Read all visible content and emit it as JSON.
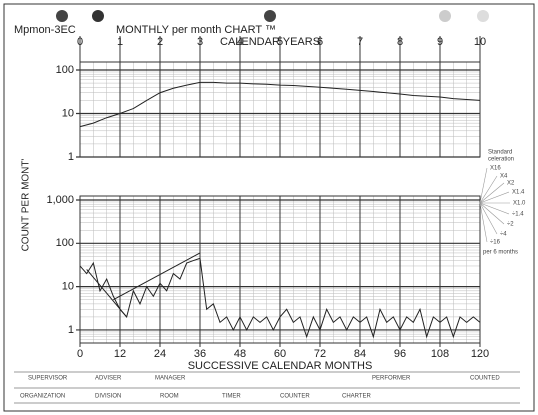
{
  "chart_data": [
    {
      "type": "line",
      "title": "MONTHLY per month CHART ™",
      "x2label": "CALENDAR YEARS",
      "x2lim": [
        0,
        10
      ],
      "x2ticks": [
        0,
        1,
        2,
        3,
        4,
        5,
        6,
        7,
        8,
        9,
        10
      ],
      "xlim": [
        0,
        120
      ],
      "ylim": [
        1,
        100
      ],
      "yticks": [
        1,
        10,
        100
      ],
      "log_y": true,
      "grid": true,
      "series": [
        {
          "color": "#222",
          "x": [
            0,
            4,
            8,
            12,
            16,
            20,
            24,
            28,
            32,
            36,
            40,
            44,
            48,
            52,
            56,
            60,
            64,
            68,
            72,
            76,
            80,
            84,
            88,
            92,
            96,
            100,
            104,
            108,
            112,
            116,
            120
          ],
          "values": [
            5,
            6,
            8,
            10,
            13,
            20,
            30,
            38,
            45,
            52,
            52,
            50,
            50,
            48,
            47,
            45,
            44,
            42,
            40,
            38,
            36,
            34,
            32,
            30,
            28,
            26,
            25,
            24,
            22,
            21,
            20
          ]
        }
      ]
    },
    {
      "type": "line",
      "xlabel": "SUCCESSIVE CALENDAR MONTHS",
      "ylabel": "COUNT PER MONT'",
      "xlim": [
        0,
        120
      ],
      "xticks": [
        0,
        12,
        24,
        36,
        48,
        60,
        72,
        84,
        96,
        108,
        120
      ],
      "ylim": [
        0.5,
        1000
      ],
      "yticks": [
        1,
        10,
        100,
        {
          "value": 1000,
          "label": "1,000"
        }
      ],
      "log_y": true,
      "grid": true,
      "series": [
        {
          "color": "#222",
          "x": [
            0,
            2,
            4,
            6,
            8,
            10,
            12,
            14,
            16,
            18,
            20,
            22,
            24,
            26,
            28,
            30,
            32,
            34,
            36,
            38,
            40,
            42,
            44,
            46,
            48,
            50,
            52,
            54,
            56,
            58,
            60,
            62,
            64,
            66,
            68,
            70,
            72,
            74,
            76,
            78,
            80,
            82,
            84,
            86,
            88,
            90,
            92,
            94,
            96,
            98,
            100,
            102,
            104,
            106,
            108,
            110,
            112,
            114,
            116,
            118,
            120
          ],
          "values": [
            30,
            20,
            35,
            8,
            15,
            6,
            3,
            2,
            8,
            4,
            10,
            6,
            12,
            8,
            20,
            15,
            35,
            40,
            45,
            3,
            4,
            1.5,
            2,
            1,
            2,
            1,
            2,
            1.5,
            2,
            1,
            2,
            3,
            1.5,
            2,
            0.7,
            2,
            1,
            3,
            1.5,
            2,
            1,
            2,
            1.5,
            2,
            0.7,
            3,
            1.5,
            2,
            1,
            2,
            1.5,
            3,
            0.7,
            2,
            1.5,
            2,
            0.7,
            2,
            1.5,
            2,
            1.5
          ]
        },
        {
          "color": "#222",
          "x": [
            2,
            14
          ],
          "values": [
            25,
            2
          ]
        },
        {
          "color": "#222",
          "x": [
            10,
            36
          ],
          "values": [
            5,
            60
          ]
        }
      ]
    }
  ],
  "form_code": "Mpmon-3EC",
  "celeration": {
    "title": [
      "Standard",
      "celeration"
    ],
    "labels": [
      "X16",
      "X4",
      "X2",
      "X1.4",
      "X1.0",
      "÷1.4",
      "÷2",
      "÷4",
      "÷16"
    ],
    "note": "per 6 months"
  },
  "form_fields": {
    "row1": [
      "SUPERVISOR",
      "ADVISER",
      "MANAGER",
      "PERFORMER",
      "COUNTED"
    ],
    "row2": [
      "ORGANIZATION",
      "DIVISION",
      "ROOM",
      "TIMER",
      "COUNTER",
      "CHARTER"
    ]
  }
}
